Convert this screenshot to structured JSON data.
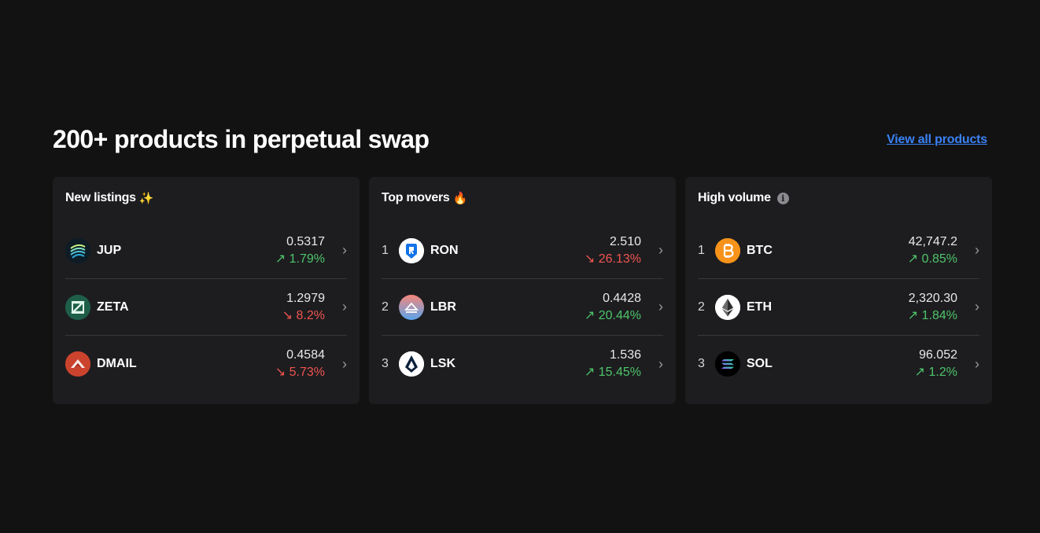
{
  "header": {
    "title": "200+ products in perpetual swap",
    "view_all": "View all products"
  },
  "colors": {
    "background": "#121212",
    "card": "#1d1d20",
    "up": "#4ec469",
    "down": "#f0554f",
    "link": "#3b82f6"
  },
  "cards": [
    {
      "title": "New listings",
      "emoji": "✨",
      "items": [
        {
          "ticker": "JUP",
          "price": "0.5317",
          "change": "1.79%",
          "direction": "up",
          "arrow": "↗",
          "icon": "jup-logo-icon"
        },
        {
          "ticker": "ZETA",
          "price": "1.2979",
          "change": "8.2%",
          "direction": "down",
          "arrow": "↘",
          "icon": "zeta-logo-icon"
        },
        {
          "ticker": "DMAIL",
          "price": "0.4584",
          "change": "5.73%",
          "direction": "down",
          "arrow": "↘",
          "icon": "dmail-logo-icon"
        }
      ]
    },
    {
      "title": "Top movers",
      "emoji": "🔥",
      "items": [
        {
          "rank": "1",
          "ticker": "RON",
          "price": "2.510",
          "change": "26.13%",
          "direction": "down",
          "arrow": "↘",
          "icon": "ron-logo-icon"
        },
        {
          "rank": "2",
          "ticker": "LBR",
          "price": "0.4428",
          "change": "20.44%",
          "direction": "up",
          "arrow": "↗",
          "icon": "lbr-logo-icon"
        },
        {
          "rank": "3",
          "ticker": "LSK",
          "price": "1.536",
          "change": "15.45%",
          "direction": "up",
          "arrow": "↗",
          "icon": "lsk-logo-icon"
        }
      ]
    },
    {
      "title": "High volume",
      "info_icon": "i",
      "items": [
        {
          "rank": "1",
          "ticker": "BTC",
          "price": "42,747.2",
          "change": "0.85%",
          "direction": "up",
          "arrow": "↗",
          "icon": "btc-logo-icon"
        },
        {
          "rank": "2",
          "ticker": "ETH",
          "price": "2,320.30",
          "change": "1.84%",
          "direction": "up",
          "arrow": "↗",
          "icon": "eth-logo-icon"
        },
        {
          "rank": "3",
          "ticker": "SOL",
          "price": "96.052",
          "change": "1.2%",
          "direction": "up",
          "arrow": "↗",
          "icon": "sol-logo-icon"
        }
      ]
    }
  ],
  "chevron": "›"
}
